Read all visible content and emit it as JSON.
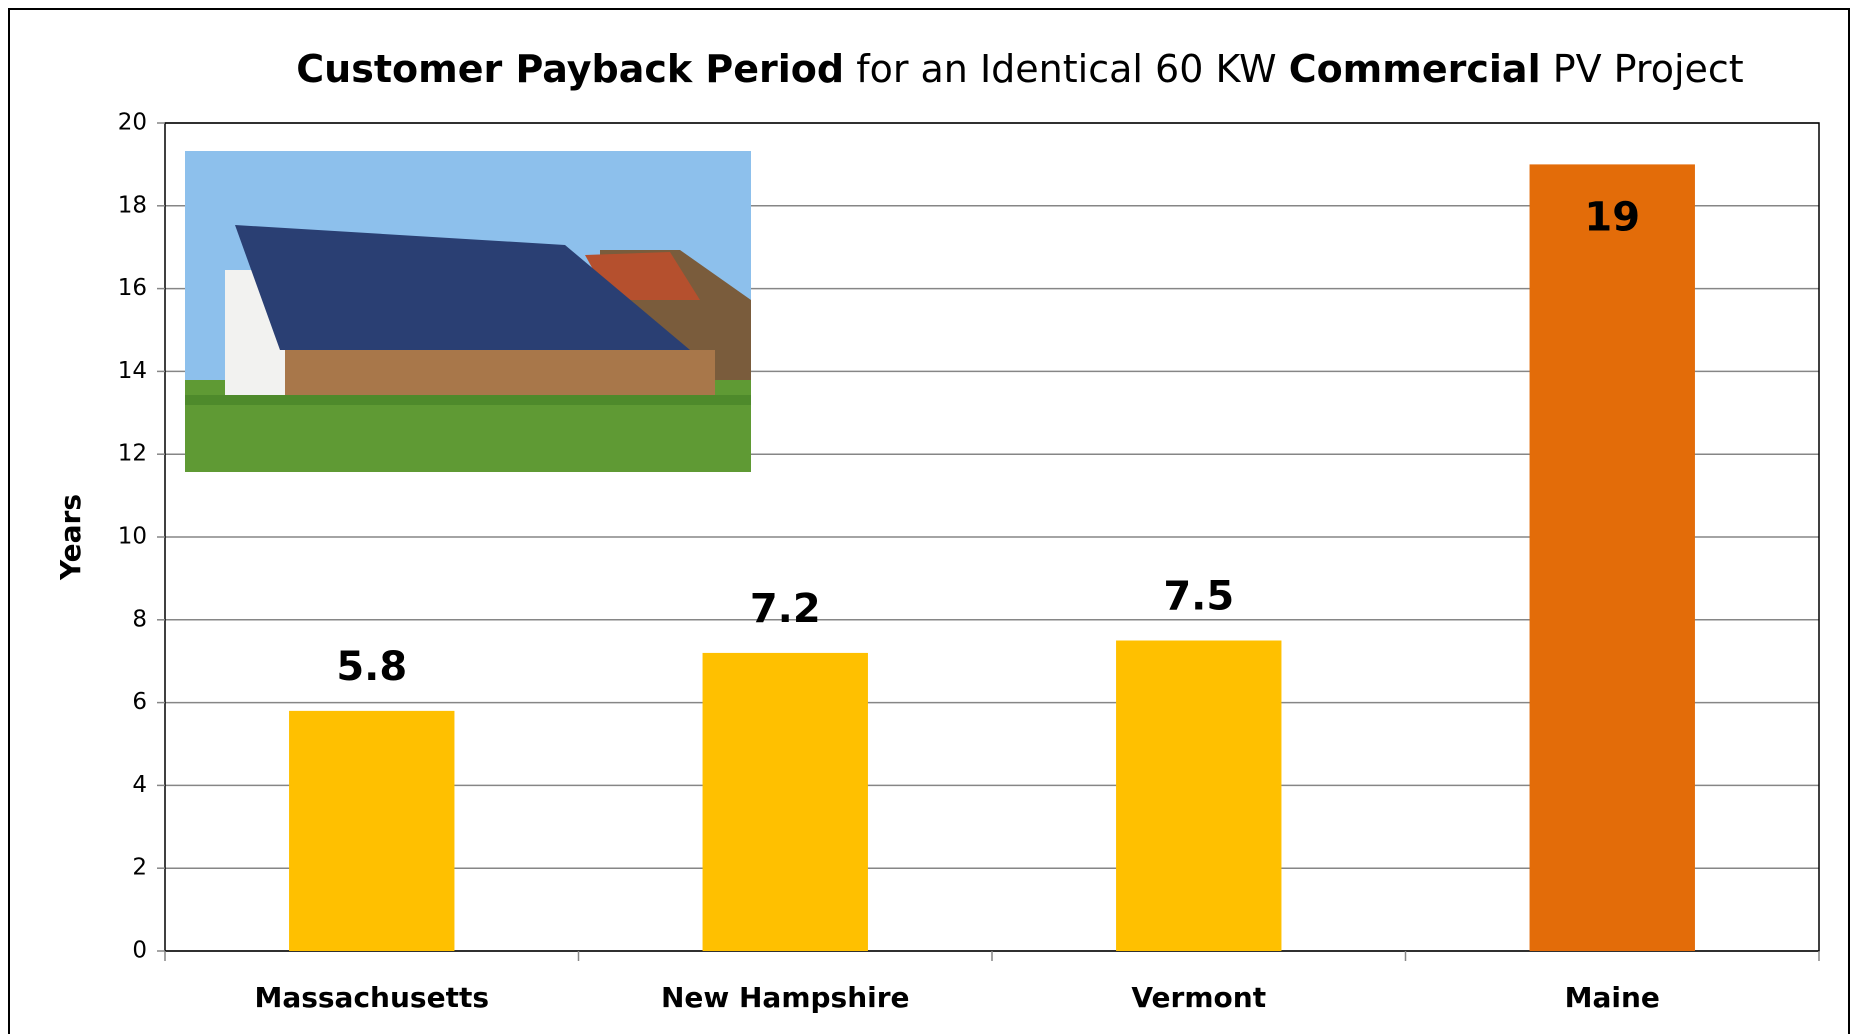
{
  "chart_data": {
    "type": "bar",
    "title": [
      {
        "text": "Customer Payback Period",
        "bold": true
      },
      {
        "text": " for an Identical 60 KW ",
        "bold": false
      },
      {
        "text": "Commercial",
        "bold": true
      },
      {
        "text": " PV Project",
        "bold": false
      }
    ],
    "ylabel": "Years",
    "categories": [
      "Massachusetts",
      "New Hampshire",
      "Vermont",
      "Maine"
    ],
    "values": [
      5.8,
      7.2,
      7.5,
      19
    ],
    "colors": [
      "#ffc000",
      "#ffc000",
      "#ffc000",
      "#e36c09"
    ],
    "ylim": [
      0,
      20
    ],
    "yticks": [
      0,
      2,
      4,
      6,
      8,
      10,
      12,
      14,
      16,
      18,
      20
    ],
    "grid": true
  }
}
